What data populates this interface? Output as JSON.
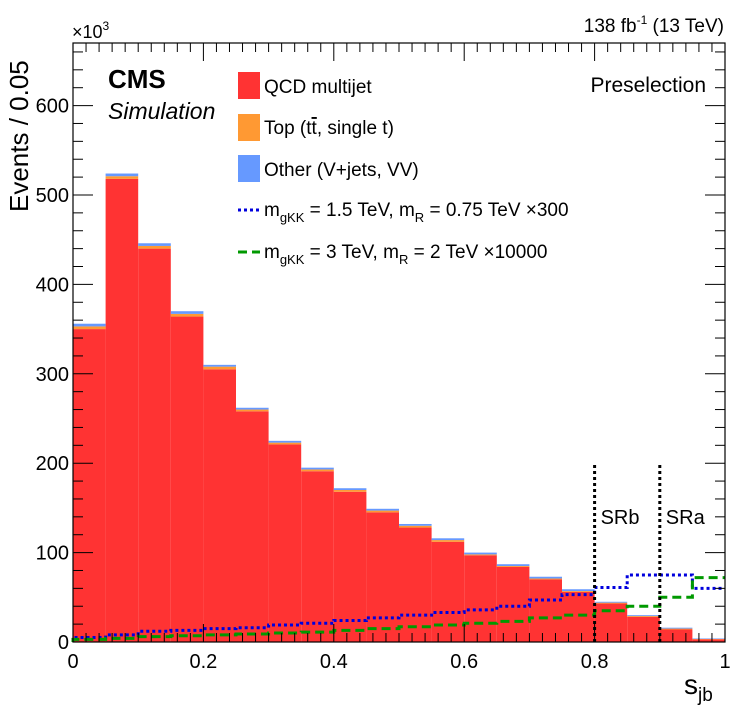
{
  "chart_data": {
    "type": "bar",
    "title": "",
    "header_right": "138 fb",
    "header_right_sup": "-1",
    "header_right_tail": " (13 TeV)",
    "cms_label": "CMS",
    "sim_label": "Simulation",
    "region_label": "Preselection",
    "xlabel": "s",
    "xlabel_sub": "jb",
    "ylabel": "Events / 0.05",
    "y_multiplier": "×10",
    "y_multiplier_sup": "3",
    "xlim": [
      0,
      1
    ],
    "ylim": [
      0,
      670
    ],
    "x_tick_values": [
      0,
      0.2,
      0.4,
      0.6,
      0.8,
      1
    ],
    "x_tick_labels": [
      "0",
      "0.2",
      "0.4",
      "0.6",
      "0.8",
      "1"
    ],
    "y_tick_values": [
      0,
      100,
      200,
      300,
      400,
      500,
      600
    ],
    "y_tick_labels": [
      "0",
      "100",
      "200",
      "300",
      "400",
      "500",
      "600"
    ],
    "bin_edges": [
      0,
      0.05,
      0.1,
      0.15,
      0.2,
      0.25,
      0.3,
      0.35,
      0.4,
      0.45,
      0.5,
      0.55,
      0.6,
      0.65,
      0.7,
      0.75,
      0.8,
      0.85,
      0.9,
      0.95,
      1.0
    ],
    "stack": [
      {
        "name": "QCD multijet",
        "color": "#ff3333",
        "values": [
          350,
          518,
          440,
          364,
          305,
          258,
          221,
          191,
          168,
          145,
          128,
          112,
          97,
          84,
          70,
          56,
          43,
          28,
          14,
          3
        ]
      },
      {
        "name": "Top (t",
        "name_bar": "t",
        "name_tail": ", single t)",
        "color": "#ff9933",
        "values": [
          3,
          3,
          3,
          3,
          3,
          2,
          2,
          2,
          2,
          2,
          2,
          2,
          1,
          1,
          1,
          1,
          1,
          1,
          1,
          0.5
        ]
      },
      {
        "name": "Other (V+jets, VV)",
        "color": "#6699ff",
        "values": [
          3,
          3,
          3,
          3,
          2,
          2,
          2,
          2,
          2,
          2,
          2,
          2,
          2,
          2,
          2,
          2,
          1,
          1,
          1,
          0.5
        ]
      }
    ],
    "signals": [
      {
        "name_m": "m",
        "name_sub1": "gKK",
        "name_mid": " = 1.5 TeV, m",
        "name_sub2": "R",
        "name_tail": " = 0.75 TeV ×300",
        "color": "#0000dd",
        "dash": "3,3",
        "values": [
          5,
          8,
          12,
          13,
          15,
          16,
          19,
          21,
          24,
          27,
          30,
          33,
          36,
          40,
          47,
          53,
          61,
          75,
          75,
          60
        ]
      },
      {
        "name_m": "m",
        "name_sub1": "gKK",
        "name_mid": " = 3 TeV, m",
        "name_sub2": "R",
        "name_tail": " = 2 TeV ×10000",
        "color": "#009900",
        "dash": "9,5",
        "values": [
          3,
          4,
          6,
          7,
          8,
          9,
          10,
          11,
          13,
          15,
          17,
          19,
          21,
          23,
          27,
          30,
          35,
          40,
          50,
          72
        ]
      }
    ],
    "regions": [
      {
        "x": 0.8,
        "label": "SRb"
      },
      {
        "x": 0.9,
        "label": "SRa"
      }
    ],
    "region_line_ymax": 200
  }
}
